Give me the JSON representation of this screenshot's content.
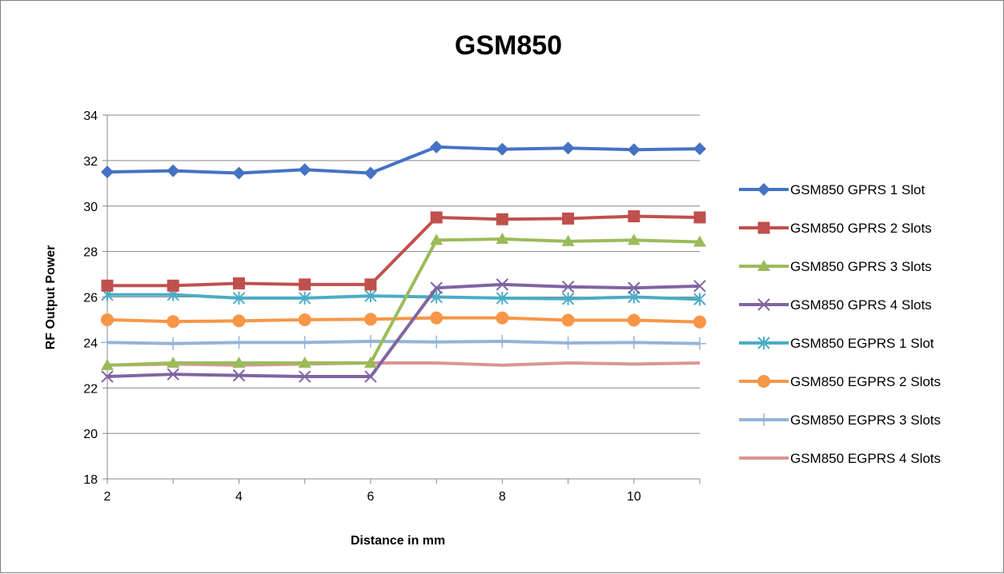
{
  "chart_data": {
    "type": "line",
    "title": "GSM850",
    "xlabel": "Distance in mm",
    "ylabel": "RF Output Power",
    "x": [
      2,
      3,
      4,
      5,
      6,
      7,
      8,
      9,
      10,
      11
    ],
    "xlim": [
      2,
      11
    ],
    "xticks": [
      2,
      4,
      6,
      8,
      10
    ],
    "ylim": [
      18,
      34
    ],
    "yticks": [
      18,
      20,
      22,
      24,
      26,
      28,
      30,
      32,
      34
    ],
    "grid": "horizontal",
    "legend_position": "right",
    "series": [
      {
        "name": "GSM850 GPRS 1 Slot",
        "color": "#4472c4",
        "marker": "diamond",
        "values": [
          31.5,
          31.55,
          31.45,
          31.6,
          31.45,
          32.6,
          32.5,
          32.55,
          32.48,
          32.52
        ]
      },
      {
        "name": "GSM850 GPRS 2 Slots",
        "color": "#c0504d",
        "marker": "square",
        "values": [
          26.5,
          26.5,
          26.6,
          26.55,
          26.55,
          29.5,
          29.42,
          29.45,
          29.55,
          29.5
        ]
      },
      {
        "name": "GSM850 GPRS 3 Slots",
        "color": "#9bbb59",
        "marker": "triangle",
        "values": [
          23.0,
          23.1,
          23.1,
          23.1,
          23.1,
          28.5,
          28.55,
          28.45,
          28.5,
          28.42
        ]
      },
      {
        "name": "GSM850 GPRS 4 Slots",
        "color": "#8064a2",
        "marker": "x",
        "values": [
          22.5,
          22.6,
          22.55,
          22.5,
          22.5,
          26.4,
          26.55,
          26.45,
          26.4,
          26.48
        ]
      },
      {
        "name": "GSM850 EGPRS 1 Slot",
        "color": "#4bacc6",
        "marker": "star",
        "values": [
          26.1,
          26.1,
          25.95,
          25.95,
          26.05,
          26.0,
          25.95,
          25.92,
          26.0,
          25.9
        ]
      },
      {
        "name": "GSM850 EGPRS 2 Slots",
        "color": "#f79646",
        "marker": "circle",
        "values": [
          25.0,
          24.92,
          24.95,
          25.0,
          25.02,
          25.08,
          25.08,
          24.98,
          24.98,
          24.9
        ]
      },
      {
        "name": "GSM850 EGPRS 3 Slots",
        "color": "#95b3d7",
        "marker": "plus",
        "values": [
          24.0,
          23.95,
          24.0,
          24.0,
          24.05,
          24.02,
          24.05,
          23.98,
          24.0,
          23.95
        ]
      },
      {
        "name": "GSM850 EGPRS 4 Slots",
        "color": "#d99694",
        "marker": "none",
        "values": [
          23.0,
          23.05,
          23.0,
          23.05,
          23.1,
          23.1,
          23.0,
          23.1,
          23.05,
          23.1
        ]
      }
    ]
  }
}
